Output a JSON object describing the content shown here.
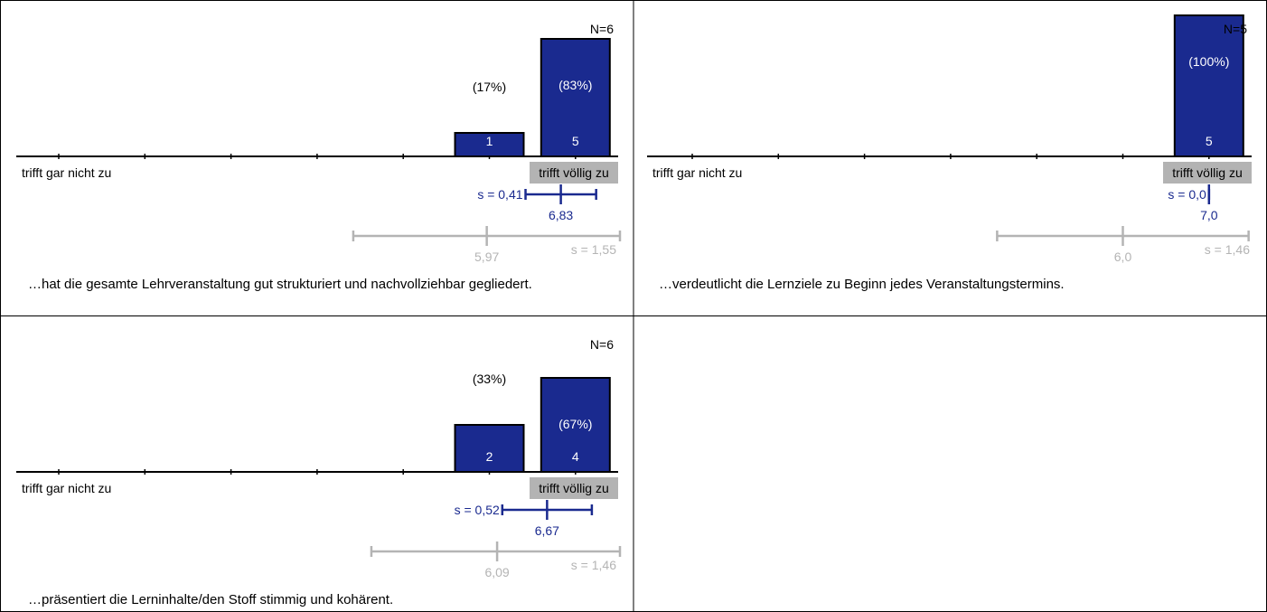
{
  "colors": {
    "bar_fill": "#1a2a8f",
    "bar_stroke": "#000000",
    "mean_color": "#1a2a8f",
    "ref_color": "#b4b4b4",
    "label_bg": "#b3b3b3",
    "grid_line": "#000000"
  },
  "scale": {
    "left_label": "trifft gar nicht zu",
    "right_label": "trifft völlig zu",
    "points": 7
  },
  "chart_data": [
    {
      "type": "bar",
      "title": "",
      "question": "…hat die gesamte Lehrveranstaltung gut strukturiert und nachvollziehbar gegliedert.",
      "n_label": "N=6",
      "categories": [
        1,
        2,
        3,
        4,
        5,
        6,
        7
      ],
      "counts": [
        0,
        0,
        0,
        0,
        0,
        1,
        5
      ],
      "percent_labels": [
        "",
        "",
        "",
        "",
        "",
        "(17%)",
        "(83%)"
      ],
      "count_labels": [
        "",
        "",
        "",
        "",
        "",
        "1",
        "5"
      ],
      "mean": 6.83,
      "mean_label": "6,83",
      "sd": 0.41,
      "sd_label": "s = 0,41",
      "ref_mean": 5.97,
      "ref_mean_label": "5,97",
      "ref_sd": 1.55,
      "ref_sd_label": "s = 1,55"
    },
    {
      "type": "bar",
      "title": "",
      "question": "…verdeutlicht die Lernziele zu Beginn jedes Veranstaltungstermins.",
      "n_label": "N=5",
      "categories": [
        1,
        2,
        3,
        4,
        5,
        6,
        7
      ],
      "counts": [
        0,
        0,
        0,
        0,
        0,
        0,
        5
      ],
      "percent_labels": [
        "",
        "",
        "",
        "",
        "",
        "",
        "(100%)"
      ],
      "count_labels": [
        "",
        "",
        "",
        "",
        "",
        "",
        "5"
      ],
      "mean": 7.0,
      "mean_label": "7,0",
      "sd": 0.0,
      "sd_label": "s = 0,0",
      "ref_mean": 6.0,
      "ref_mean_label": "6,0",
      "ref_sd": 1.46,
      "ref_sd_label": "s = 1,46"
    },
    {
      "type": "bar",
      "title": "",
      "question": "…präsentiert die Lerninhalte/den Stoff stimmig und kohärent.",
      "n_label": "N=6",
      "categories": [
        1,
        2,
        3,
        4,
        5,
        6,
        7
      ],
      "counts": [
        0,
        0,
        0,
        0,
        0,
        2,
        4
      ],
      "percent_labels": [
        "",
        "",
        "",
        "",
        "",
        "(33%)",
        "(67%)"
      ],
      "count_labels": [
        "",
        "",
        "",
        "",
        "",
        "2",
        "4"
      ],
      "mean": 6.67,
      "mean_label": "6,67",
      "sd": 0.52,
      "sd_label": "s = 0,52",
      "ref_mean": 6.09,
      "ref_mean_label": "6,09",
      "ref_sd": 1.46,
      "ref_sd_label": "s = 1,46"
    }
  ]
}
